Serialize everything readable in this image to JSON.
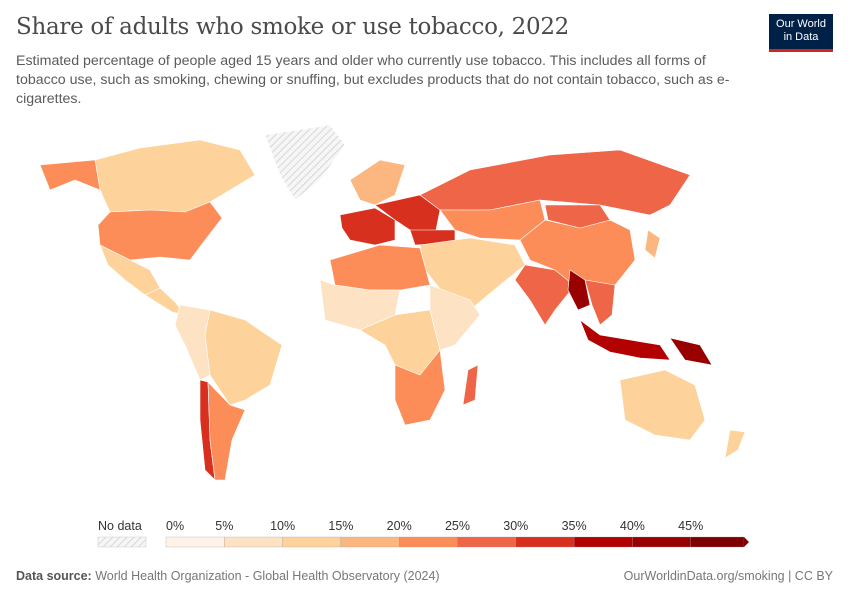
{
  "title": "Share of adults who smoke or use tobacco, 2022",
  "subtitle": "Estimated percentage of people aged 15 years and older who currently use tobacco. This includes all forms of tobacco use, such as smoking, chewing or snuffing, but excludes products that do not contain tobacco, such as e-cigarettes.",
  "logo": {
    "line1": "Our World",
    "line2": "in Data"
  },
  "footer": {
    "source_label": "Data source:",
    "source": "World Health Organization - Global Health Observatory (2024)",
    "right": "OurWorldinData.org/smoking | CC BY"
  },
  "chart_data": {
    "type": "choropleth",
    "title": "Share of adults who smoke or use tobacco, 2022",
    "unit": "%",
    "legend": {
      "no_data_label": "No data",
      "bins": [
        0,
        5,
        10,
        15,
        20,
        25,
        30,
        35,
        40,
        45
      ],
      "tick_labels": [
        "0%",
        "5%",
        "10%",
        "15%",
        "20%",
        "25%",
        "30%",
        "35%",
        "40%",
        "45%"
      ],
      "colors": [
        "#fff3e7",
        "#fee2c4",
        "#fdd29b",
        "#fcb67f",
        "#fc8d59",
        "#ef6548",
        "#d7301f",
        "#b30000",
        "#990000",
        "#7f0000"
      ],
      "no_data_pattern": "hatched-grey",
      "placement": "bottom"
    },
    "regions": [
      {
        "name": "Canada",
        "value": 12
      },
      {
        "name": "United States",
        "value": 23
      },
      {
        "name": "Mexico",
        "value": 12
      },
      {
        "name": "Central America",
        "value": 10
      },
      {
        "name": "Brazil",
        "value": 12
      },
      {
        "name": "Western South America",
        "value": 9
      },
      {
        "name": "Chile",
        "value": 30
      },
      {
        "name": "Argentina",
        "value": 24
      },
      {
        "name": "Greenland",
        "value": null
      },
      {
        "name": "Alaska",
        "value": 23
      },
      {
        "name": "Western Europe",
        "value": 30
      },
      {
        "name": "Eastern Europe",
        "value": 32
      },
      {
        "name": "Scandinavia",
        "value": 18
      },
      {
        "name": "Russia",
        "value": 28
      },
      {
        "name": "Kazakhstan & Central Asia",
        "value": 22
      },
      {
        "name": "Turkey",
        "value": 33
      },
      {
        "name": "Middle East",
        "value": 14
      },
      {
        "name": "North Africa",
        "value": 20
      },
      {
        "name": "West Africa",
        "value": 7
      },
      {
        "name": "Central Africa",
        "value": 10
      },
      {
        "name": "East Africa",
        "value": 9
      },
      {
        "name": "Southern Africa",
        "value": 22
      },
      {
        "name": "Madagascar",
        "value": 27
      },
      {
        "name": "India",
        "value": 27
      },
      {
        "name": "China",
        "value": 24
      },
      {
        "name": "Mongolia",
        "value": 27
      },
      {
        "name": "Myanmar",
        "value": 42
      },
      {
        "name": "Southeast Asia",
        "value": 28
      },
      {
        "name": "Indonesia",
        "value": 38
      },
      {
        "name": "Papua New Guinea",
        "value": 40
      },
      {
        "name": "Japan",
        "value": 19
      },
      {
        "name": "Australia",
        "value": 12
      },
      {
        "name": "New Zealand",
        "value": 13
      }
    ]
  }
}
